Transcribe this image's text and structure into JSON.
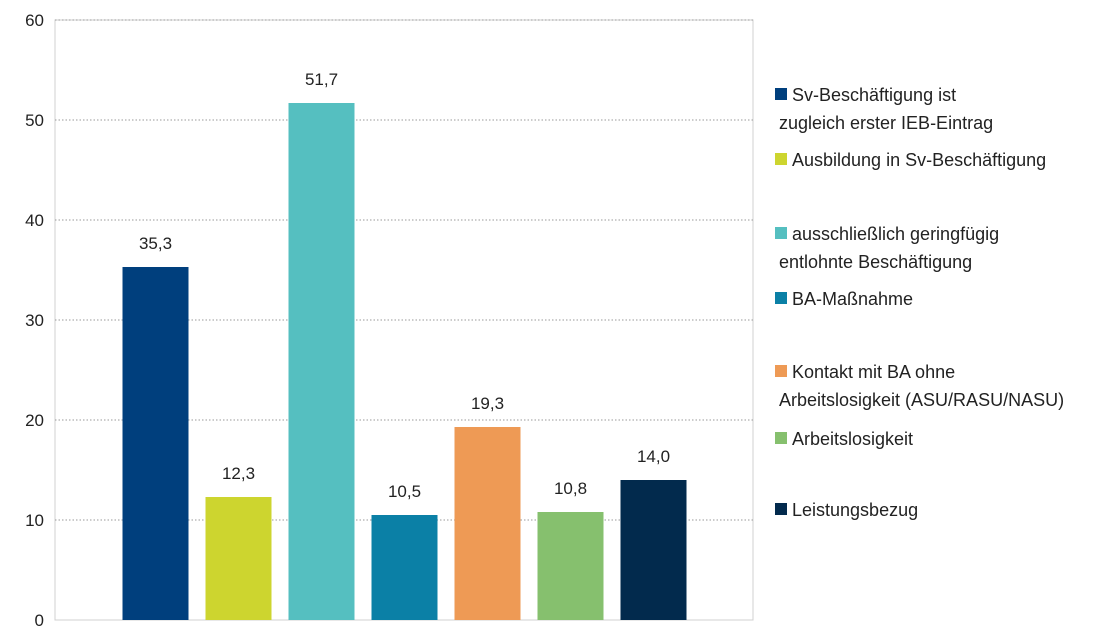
{
  "chart_data": {
    "type": "bar",
    "categories": [
      "Sv-Beschäftigung ist zugleich erster IEB-Eintrag",
      "Ausbildung in Sv-Beschäftigung",
      "ausschließlich geringfügig entlohnte Beschäftigung",
      "BA-Maßnahme",
      "Kontakt mit BA ohne Arbeitslosigkeit (ASU/RASU/NASU)",
      "Arbeitslosigkeit",
      "Leistungsbezug"
    ],
    "values": [
      35.3,
      12.3,
      51.7,
      10.5,
      19.3,
      10.8,
      14.0
    ],
    "data_labels": [
      "35,3",
      "12,3",
      "51,7",
      "10,5",
      "19,3",
      "10,8",
      "14,0"
    ],
    "colors": [
      "#003F7D",
      "#CDD52F",
      "#55BFC0",
      "#0B80A6",
      "#EE9A55",
      "#86C06E",
      "#022A4D"
    ],
    "legend": [
      [
        "Sv-Beschäftigung ist",
        "zugleich erster IEB-Eintrag"
      ],
      [
        "Ausbildung in Sv-Beschäftigung"
      ],
      [
        "ausschließlich geringfügig",
        "entlohnte Beschäftigung"
      ],
      [
        "BA-Maßnahme"
      ],
      [
        "Kontakt mit BA ohne",
        "Arbeitslosigkeit (ASU/RASU/NASU)"
      ],
      [
        "Arbeitslosigkeit"
      ],
      [
        "Leistungsbezug"
      ]
    ],
    "yticks": [
      "0",
      "10",
      "20",
      "30",
      "40",
      "50",
      "60"
    ],
    "ylim": [
      0,
      60
    ],
    "title": "",
    "xlabel": "",
    "ylabel": "",
    "grid": true,
    "legend_position": "right"
  }
}
